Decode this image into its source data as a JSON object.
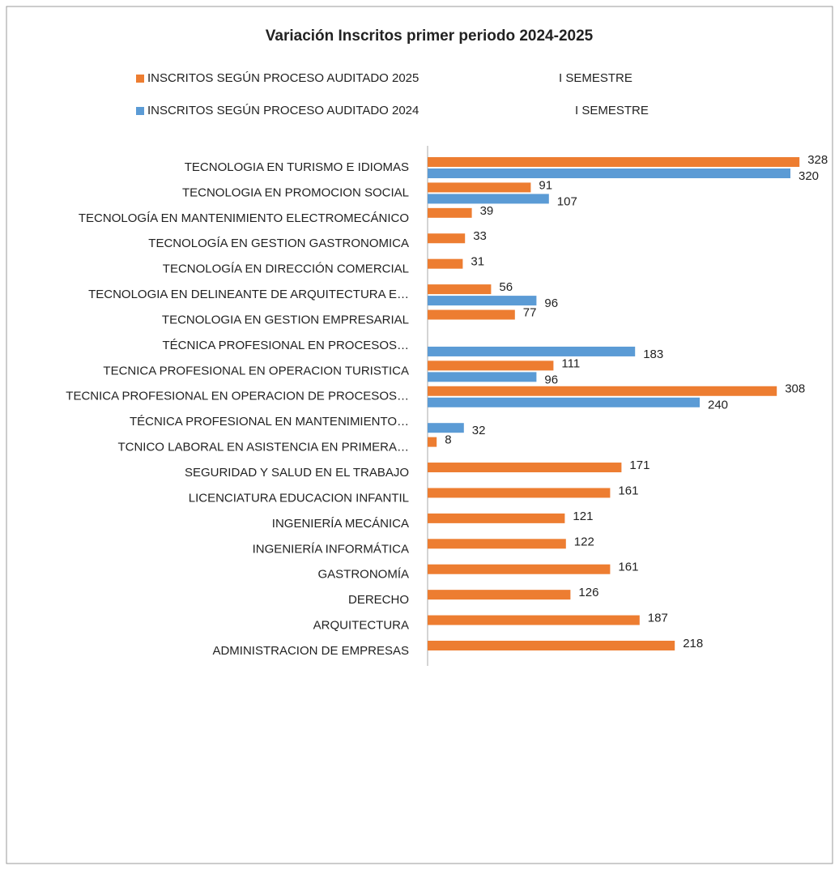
{
  "chart_data": {
    "type": "hbar",
    "title": "Variación Inscritos primer periodo 2024-2025",
    "categories": [
      "TECNOLOGIA EN TURISMO E IDIOMAS",
      "TECNOLOGIA EN PROMOCION SOCIAL",
      "TECNOLOGÍA EN MANTENIMIENTO ELECTROMECÁNICO",
      "TECNOLOGÍA EN GESTION GASTRONOMICA",
      "TECNOLOGÍA EN DIRECCIÓN COMERCIAL",
      "TECNOLOGIA EN DELINEANTE DE ARQUITECTURA E…",
      "TECNOLOGIA  EN GESTION EMPRESARIAL",
      "TÉCNICA PROFESIONAL EN PROCESOS…",
      "TECNICA PROFESIONAL EN OPERACION TURISTICA",
      "TECNICA PROFESIONAL EN OPERACION DE PROCESOS…",
      "TÉCNICA PROFESIONAL EN MANTENIMIENTO…",
      "TCNICO LABORAL EN ASISTENCIA EN PRIMERA…",
      "SEGURIDAD Y SALUD EN EL TRABAJO",
      "LICENCIATURA  EDUCACION INFANTIL",
      "INGENIERÍA MECÁNICA",
      "INGENIERÍA INFORMÁTICA",
      "GASTRONOMÍA",
      "DERECHO",
      "ARQUITECTURA",
      "ADMINISTRACION DE EMPRESAS"
    ],
    "series": [
      {
        "name": "INSCRITOS SEGÚN PROCESO AUDITADO 2025",
        "period": "I SEMESTRE",
        "color": "#ed7d31",
        "values": [
          328,
          91,
          39,
          33,
          31,
          56,
          77,
          null,
          111,
          308,
          null,
          8,
          171,
          161,
          121,
          122,
          161,
          126,
          187,
          218
        ]
      },
      {
        "name": "INSCRITOS SEGÚN PROCESO AUDITADO 2024",
        "period": "I SEMESTRE",
        "color": "#5b9bd5",
        "values": [
          320,
          107,
          null,
          null,
          null,
          96,
          null,
          183,
          96,
          240,
          32,
          null,
          null,
          null,
          null,
          null,
          null,
          null,
          null,
          null
        ]
      }
    ],
    "xlim": [
      0,
      345
    ]
  }
}
